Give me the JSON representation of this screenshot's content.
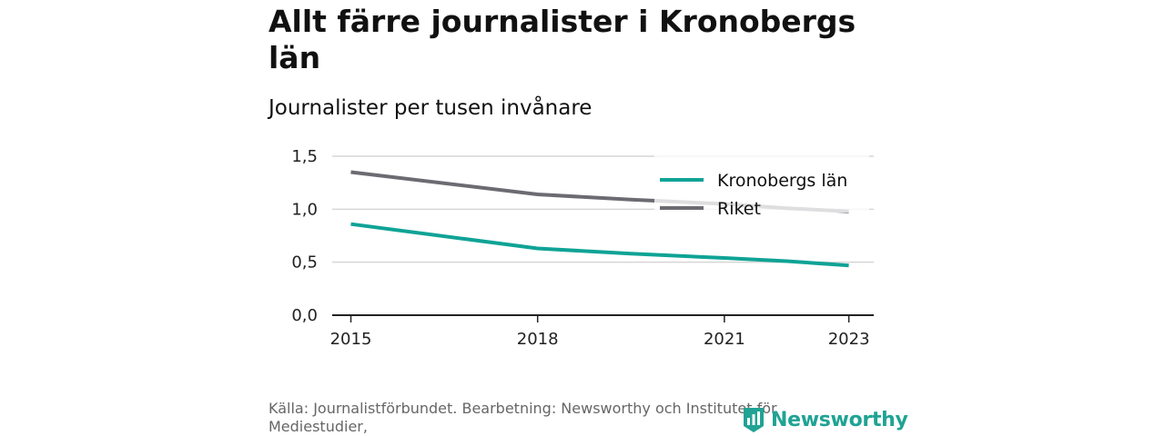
{
  "title": "Allt färre journalister i Kronobergs län",
  "subtitle": "Journalister per tusen invånare",
  "source": "Källa: Journalistförbundet. Bearbetning: Newsworthy och Institutet för Mediestudier,",
  "brand": {
    "name": "Newsworthy",
    "icon": "newsworthy-logo-icon",
    "color": "#20a394"
  },
  "chart_data": {
    "type": "line",
    "x": [
      2015,
      2018,
      2021,
      2023
    ],
    "x_tick_labels": [
      "2015",
      "2018",
      "2021",
      "2023"
    ],
    "y_tick_values": [
      0,
      0.5,
      1.0,
      1.5
    ],
    "y_tick_labels": [
      "0,0",
      "0,5",
      "1,0",
      "1,5"
    ],
    "ylim": [
      0,
      1.5
    ],
    "xlim": [
      2014.7,
      2023.4
    ],
    "grid": true,
    "legend_position": "top-right",
    "series": [
      {
        "name": "Kronobergs län",
        "color": "#0fa396",
        "x": [
          2015,
          2018,
          2019.5,
          2021,
          2022,
          2023
        ],
        "y": [
          0.86,
          0.63,
          0.58,
          0.54,
          0.51,
          0.47
        ]
      },
      {
        "name": "Riket",
        "color": "#6b6b72",
        "x": [
          2015,
          2018,
          2019.5,
          2021,
          2022,
          2023
        ],
        "y": [
          1.35,
          1.14,
          1.09,
          1.05,
          1.01,
          0.98
        ]
      }
    ]
  }
}
